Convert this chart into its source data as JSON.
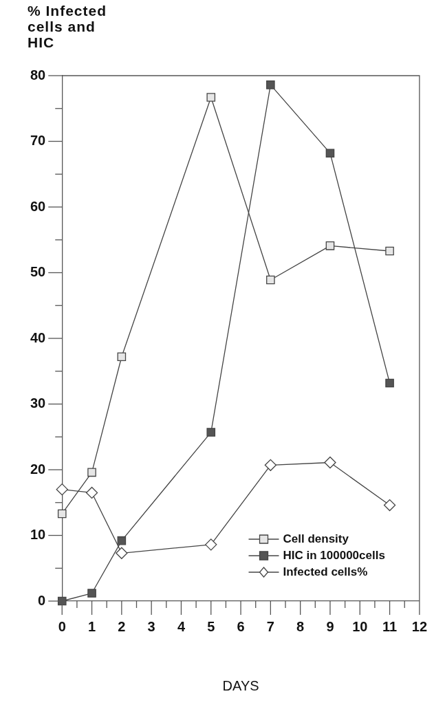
{
  "chart_data": {
    "type": "line",
    "ylabel": "% Infected cells and HIC",
    "xlabel": "DAYS",
    "x": [
      0,
      1,
      2,
      5,
      7,
      9,
      11
    ],
    "xlim": [
      0,
      12
    ],
    "xticks": [
      0,
      {
        "value": 0.5,
        "label": null
      },
      1,
      {
        "value": 1.5,
        "label": null
      },
      2,
      {
        "value": 2.5,
        "label": null
      },
      3,
      {
        "value": 3.5,
        "label": null
      },
      4,
      {
        "value": 4.5,
        "label": null
      },
      5,
      {
        "value": 5.5,
        "label": null
      },
      6,
      {
        "value": 6.5,
        "label": null
      },
      7,
      {
        "value": 7.5,
        "label": null
      },
      8,
      {
        "value": 8.5,
        "label": null
      },
      9,
      {
        "value": 9.5,
        "label": null
      },
      10,
      {
        "value": 10.5,
        "label": null
      },
      11,
      {
        "value": 11.5,
        "label": null
      },
      12
    ],
    "ylim": [
      0,
      80
    ],
    "yticks": [
      0,
      {
        "value": 5,
        "label": null
      },
      10,
      {
        "value": 15,
        "label": null
      },
      20,
      {
        "value": 25,
        "label": null
      },
      30,
      {
        "value": 35,
        "label": null
      },
      40,
      {
        "value": 45,
        "label": null
      },
      50,
      {
        "value": 55,
        "label": null
      },
      60,
      {
        "value": 65,
        "label": null
      },
      70,
      {
        "value": 75,
        "label": null
      },
      80
    ],
    "series": [
      {
        "name": "Cell density",
        "color": "#e6e6e6",
        "marker": "square",
        "values": [
          13.3,
          19.6,
          37.2,
          76.7,
          48.9,
          54.1,
          53.3
        ]
      },
      {
        "name": "HIC in 100000cells",
        "color": "#555555",
        "marker": "square",
        "values": [
          0,
          1.2,
          9.2,
          25.7,
          78.6,
          68.2,
          33.2
        ]
      },
      {
        "name": "Infected cells%",
        "color": "#ffffff",
        "marker": "diamond",
        "values": [
          17.0,
          16.5,
          7.3,
          8.6,
          20.7,
          21.1,
          14.6
        ]
      }
    ],
    "grid": false,
    "legend": "bottom right",
    "line_style": "solid"
  }
}
